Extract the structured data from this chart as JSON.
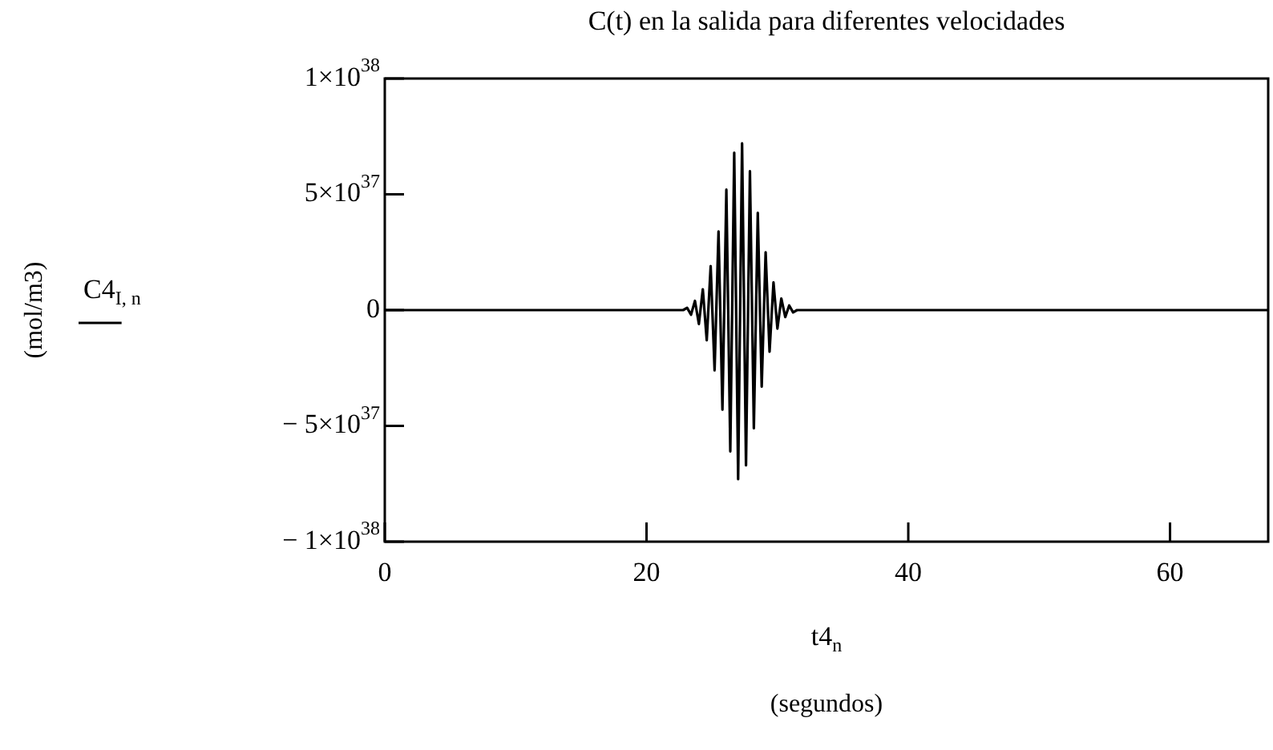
{
  "chart_data": {
    "type": "line",
    "title": "C(t) en la salida para diferentes velocidades",
    "xlabel": "(segundos)",
    "annotations": [
      "t4$_{n}$",
      "(mol/m3)"
    ],
    "legend": "left",
    "marker": "none",
    "line_style": "solid",
    "xlim": [
      0,
      67.5
    ],
    "xticks": [
      0,
      20,
      40,
      60
    ],
    "ylim": [
      -1e+38,
      1e+38
    ],
    "yticks": [
      {
        "value": 1e+38,
        "label": "1×10$^{38}$"
      },
      {
        "value": 5e+37,
        "label": "5×10$^{37}$"
      },
      0,
      {
        "value": -5e+37,
        "label": "− 5×10$^{37}$"
      },
      {
        "value": -1e+38,
        "label": "− 1×10$^{38}$"
      }
    ],
    "series": [
      {
        "name": "C4$_{I, n}$",
        "color": "#000000",
        "x": [
          0,
          22.8,
          23.1,
          23.4,
          23.7,
          24.0,
          24.3,
          24.6,
          24.9,
          25.2,
          25.5,
          25.8,
          26.1,
          26.4,
          26.7,
          27.0,
          27.3,
          27.6,
          27.9,
          28.2,
          28.5,
          28.8,
          29.1,
          29.4,
          29.7,
          30.0,
          30.3,
          30.6,
          30.9,
          31.2,
          31.5,
          67.5
        ],
        "values": [
          0,
          0,
          1e+36,
          -2e+36,
          4e+36,
          -6e+36,
          9e+36,
          -1.3e+37,
          1.9e+37,
          -2.6e+37,
          3.4e+37,
          -4.3e+37,
          5.2e+37,
          -6.1e+37,
          6.8e+37,
          -7.3e+37,
          7.2e+37,
          -6.7e+37,
          6e+37,
          -5.1e+37,
          4.2e+37,
          -3.3e+37,
          2.5e+37,
          -1.8e+37,
          1.2e+37,
          -8e+36,
          5e+36,
          -3e+36,
          2e+36,
          -1e+36,
          0,
          0
        ]
      }
    ]
  }
}
